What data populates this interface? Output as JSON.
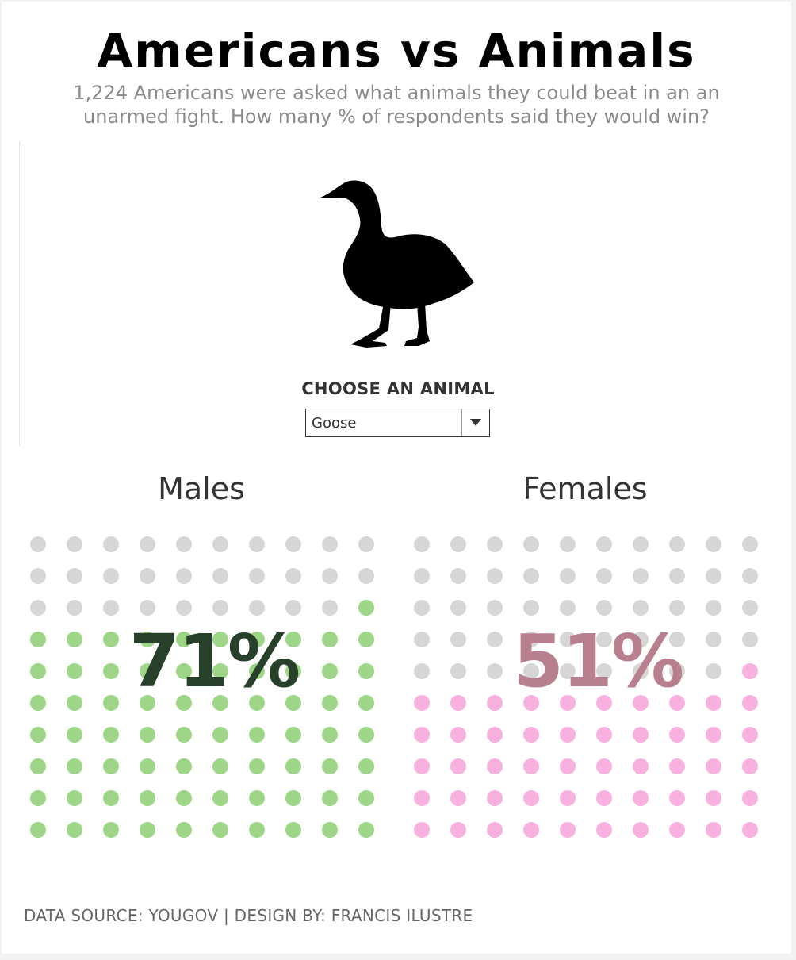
{
  "title": "Americans vs Animals",
  "subtitle": "1,224 Americans were asked what animals they could beat in an an unarmed fight. How many % of respondents said they would win?",
  "animal_icon": "goose-silhouette-icon",
  "selector": {
    "label": "CHOOSE AN ANIMAL",
    "value": "Goose"
  },
  "footer": "DATA SOURCE: YOUGOV | DESIGN BY: FRANCIS ILUSTRE",
  "colors": {
    "inactive_dot": "#d6d6d6",
    "male_dot": "#9cd686",
    "female_dot": "#f8b0de",
    "male_text": "#26402a",
    "female_text": "#b87f8f"
  },
  "chart_data": [
    {
      "type": "waffle",
      "group": "Males",
      "value_percent": 71,
      "label": "71%",
      "grid": {
        "rows": 10,
        "cols": 10
      }
    },
    {
      "type": "waffle",
      "group": "Females",
      "value_percent": 51,
      "label": "51%",
      "grid": {
        "rows": 10,
        "cols": 10
      }
    }
  ]
}
